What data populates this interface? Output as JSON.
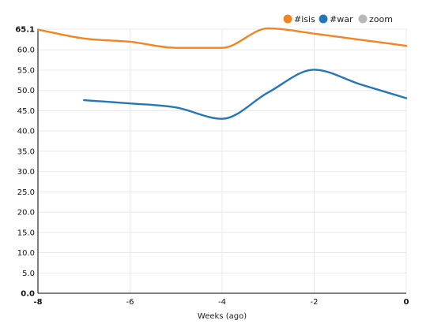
{
  "chart_data": {
    "type": "line",
    "title": "",
    "xlabel": "Weeks (ago)",
    "ylabel": "",
    "xlim": [
      -8,
      0
    ],
    "ylim": [
      0,
      65.1
    ],
    "x_ticks": [
      "-8",
      "-6",
      "-4",
      "-2",
      "0"
    ],
    "x_tick_values": [
      -8,
      -6,
      -4,
      -2,
      0
    ],
    "y_ticks": [
      "0.0",
      "5.0",
      "10.0",
      "15.0",
      "20.0",
      "25.0",
      "30.0",
      "35.0",
      "40.0",
      "45.0",
      "50.0",
      "55.0",
      "60.0",
      "65.1"
    ],
    "y_tick_values": [
      0,
      5,
      10,
      15,
      20,
      25,
      30,
      35,
      40,
      45,
      50,
      55,
      60,
      65.1
    ],
    "grid": true,
    "legend_position": "top-right",
    "series": [
      {
        "name": "#isis",
        "color": "#f5831f",
        "x": [
          -8,
          -7,
          -6,
          -5,
          -4,
          -3,
          -2,
          -1,
          0
        ],
        "y": [
          65,
          62.8,
          62,
          60.5,
          60.5,
          65.3,
          64,
          62.5,
          61
        ]
      },
      {
        "name": "#war",
        "color": "#2476b9",
        "x": [
          -7,
          -6,
          -5,
          -4,
          -3,
          -2,
          -1,
          0
        ],
        "y": [
          47.6,
          46.8,
          45.8,
          43,
          49.5,
          55.1,
          51.5,
          48.1
        ]
      }
    ],
    "legend": [
      {
        "label": "#isis",
        "color": "#f5831f"
      },
      {
        "label": "#war",
        "color": "#2476b9"
      },
      {
        "label": "zoom",
        "color": "#b8b8b8"
      }
    ]
  }
}
